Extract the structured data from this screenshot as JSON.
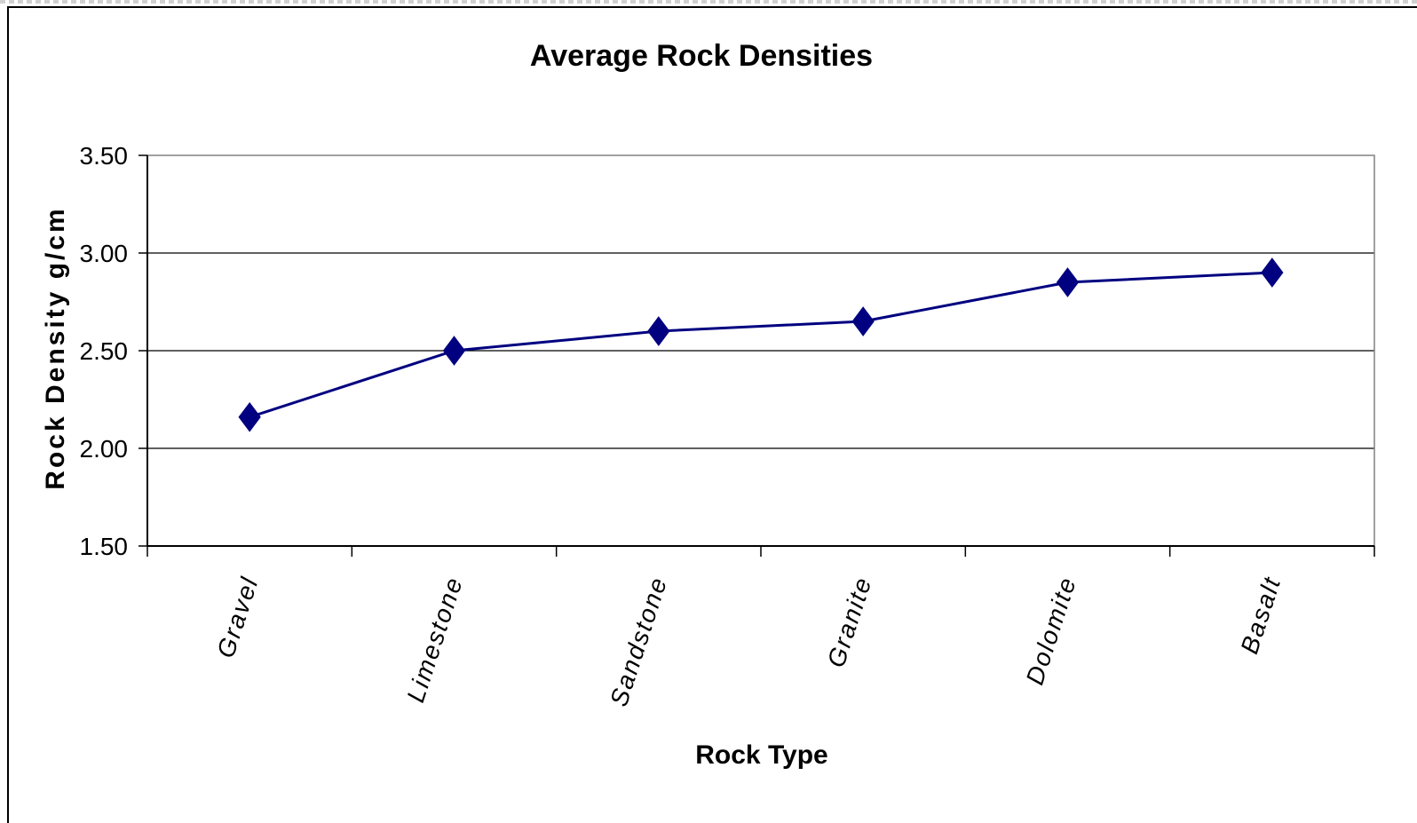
{
  "chart_data": {
    "type": "line",
    "title": "Average Rock Densities",
    "xlabel": "Rock Type",
    "ylabel": "Rock Density g/cm",
    "categories": [
      "Gravel",
      "Limestone",
      "Sandstone",
      "Granite",
      "Dolomite",
      "Basalt"
    ],
    "series": [
      {
        "values": [
          2.16,
          2.5,
          2.6,
          2.65,
          2.85,
          2.9
        ]
      }
    ],
    "ylim": [
      1.5,
      3.5
    ],
    "yticks": [
      "1.50",
      "2.00",
      "2.50",
      "3.00",
      "3.50"
    ],
    "grid": true,
    "legend": "none",
    "colors": {
      "line": "#000080",
      "marker": "#000080",
      "grid": "#000000"
    }
  }
}
